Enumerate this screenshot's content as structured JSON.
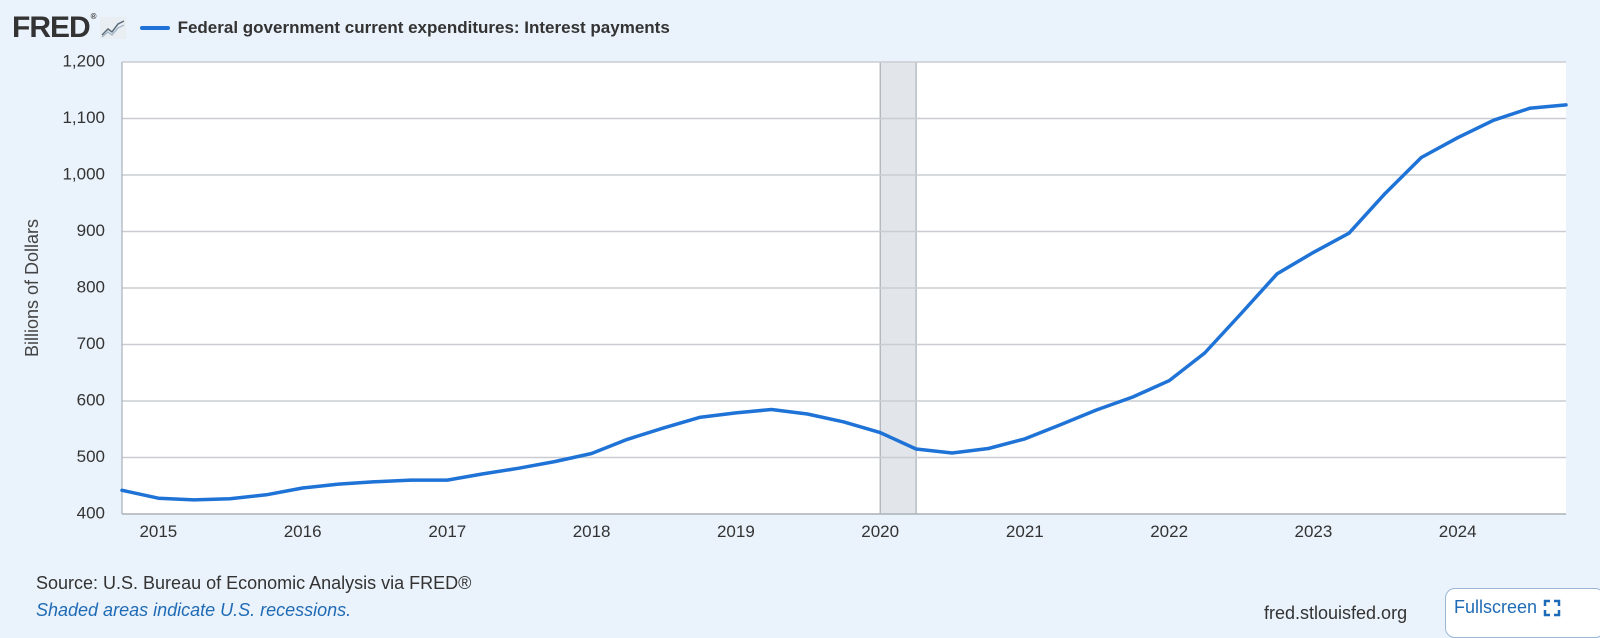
{
  "header": {
    "logo": "FRED",
    "legend_label": "Federal government current expenditures: Interest payments"
  },
  "colors": {
    "series": "#1f73d6",
    "background": "#eaf2fb",
    "plot_background": "#ffffff",
    "grid": "#c9cdd1",
    "recession": "#e2e6ea"
  },
  "chart_data": {
    "type": "line",
    "title": "",
    "xlabel": "",
    "ylabel": "Billions of Dollars",
    "ylim": [
      400,
      1200
    ],
    "yticks": [
      400,
      500,
      600,
      700,
      800,
      900,
      1000,
      1100,
      1200
    ],
    "ytick_labels": [
      "400",
      "500",
      "600",
      "700",
      "800",
      "900",
      "1,000",
      "1,100",
      "1,200"
    ],
    "xticks": [
      "2015",
      "2016",
      "2017",
      "2018",
      "2019",
      "2020",
      "2021",
      "2022",
      "2023",
      "2024"
    ],
    "grid": true,
    "recessions": [
      {
        "start": "2020-01-01",
        "end": "2020-04-01"
      }
    ],
    "series": [
      {
        "name": "Federal government current expenditures: Interest payments",
        "x": [
          "2014-10-01",
          "2015-01-01",
          "2015-04-01",
          "2015-07-01",
          "2015-10-01",
          "2016-01-01",
          "2016-04-01",
          "2016-07-01",
          "2016-10-01",
          "2017-01-01",
          "2017-04-01",
          "2017-07-01",
          "2017-10-01",
          "2018-01-01",
          "2018-04-01",
          "2018-07-01",
          "2018-10-01",
          "2019-01-01",
          "2019-04-01",
          "2019-07-01",
          "2019-10-01",
          "2020-01-01",
          "2020-04-01",
          "2020-07-01",
          "2020-10-01",
          "2021-01-01",
          "2021-04-01",
          "2021-07-01",
          "2021-10-01",
          "2022-01-01",
          "2022-04-01",
          "2022-07-01",
          "2022-10-01",
          "2023-01-01",
          "2023-04-01",
          "2023-07-01",
          "2023-10-01",
          "2024-01-01",
          "2024-04-01",
          "2024-07-01",
          "2024-10-01"
        ],
        "values": [
          442,
          428,
          425,
          427,
          434,
          446,
          453,
          457,
          460,
          460,
          471,
          481,
          493,
          507,
          532,
          552,
          571,
          579,
          585,
          577,
          563,
          544,
          515,
          508,
          516,
          533,
          558,
          584,
          607,
          636,
          685,
          754,
          825,
          863,
          897,
          967,
          1031,
          1066,
          1097,
          1118,
          1124
        ]
      }
    ]
  },
  "footer": {
    "source": "Source: U.S. Bureau of Economic Analysis via FRED®",
    "note": "Shaded areas indicate U.S. recessions.",
    "site": "fred.stlouisfed.org",
    "fullscreen_label": "Fullscreen"
  }
}
